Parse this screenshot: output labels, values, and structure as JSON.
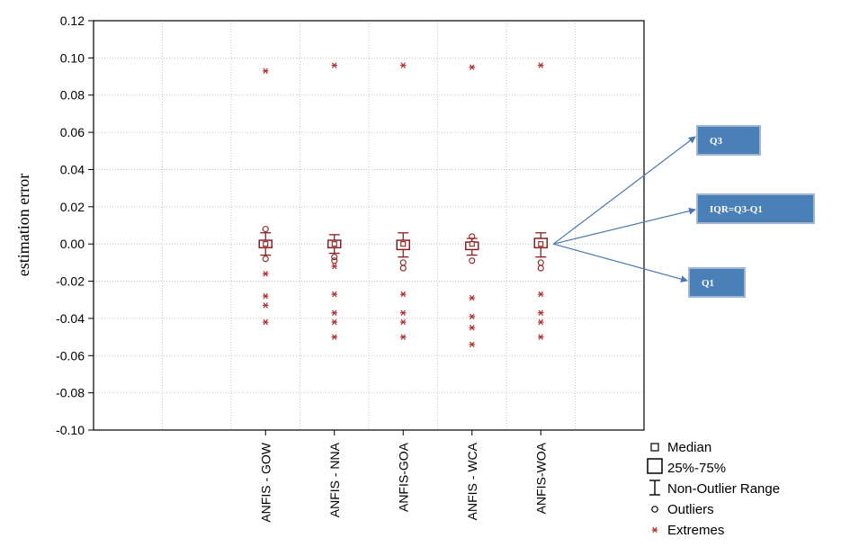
{
  "chart_data": {
    "type": "box",
    "ylabel": "estimation error",
    "ylim": [
      -0.1,
      0.12
    ],
    "yticks": [
      0.12,
      0.1,
      0.08,
      0.06,
      0.04,
      0.02,
      0.0,
      -0.02,
      -0.04,
      -0.06,
      -0.08,
      -0.1
    ],
    "ytick_labels": [
      "0.12",
      "0.10",
      "0.08",
      "0.06",
      "0.04",
      "0.02",
      "0.00",
      "-0.02",
      "-0.04",
      "-0.06",
      "-0.08",
      "-0.10"
    ],
    "grid": true,
    "categories": [
      "ANFIS - GOW",
      "ANFIS - NNA",
      "ANFIS-GOA",
      "ANFIS - WCA",
      "ANFIS-WOA"
    ],
    "boxes": [
      {
        "median": 0.0,
        "q1": -0.002,
        "q3": 0.002,
        "whisker_low": -0.006,
        "whisker_high": 0.006,
        "outliers": [
          0.008,
          -0.008
        ],
        "extremes": [
          0.093,
          -0.016,
          -0.028,
          -0.033,
          -0.042
        ]
      },
      {
        "median": 0.0,
        "q1": -0.002,
        "q3": 0.002,
        "whisker_low": -0.005,
        "whisker_high": 0.005,
        "outliers": [
          -0.007,
          -0.009
        ],
        "extremes": [
          0.096,
          -0.012,
          -0.027,
          -0.037,
          -0.042,
          -0.05
        ]
      },
      {
        "median": 0.0,
        "q1": -0.003,
        "q3": 0.002,
        "whisker_low": -0.007,
        "whisker_high": 0.006,
        "outliers": [
          -0.01,
          -0.013
        ],
        "extremes": [
          0.096,
          -0.027,
          -0.037,
          -0.042,
          -0.05
        ]
      },
      {
        "median": 0.0,
        "q1": -0.003,
        "q3": 0.001,
        "whisker_low": -0.006,
        "whisker_high": 0.003,
        "outliers": [
          0.004,
          -0.009
        ],
        "extremes": [
          0.095,
          -0.029,
          -0.039,
          -0.045,
          -0.054
        ]
      },
      {
        "median": 0.0,
        "q1": -0.002,
        "q3": 0.003,
        "whisker_low": -0.007,
        "whisker_high": 0.006,
        "outliers": [
          -0.01,
          -0.013
        ],
        "extremes": [
          0.096,
          -0.027,
          -0.037,
          -0.042,
          -0.05
        ]
      }
    ],
    "legend": {
      "placement": "bottom-right",
      "entries": [
        {
          "symbol": "median",
          "label": "Median"
        },
        {
          "symbol": "box",
          "label": "25%-75%"
        },
        {
          "symbol": "whisker",
          "label": "Non-Outlier Range"
        },
        {
          "symbol": "outlier",
          "label": "Outliers"
        },
        {
          "symbol": "extreme",
          "label": "Extremes"
        }
      ]
    },
    "callouts": [
      {
        "label": "Q3"
      },
      {
        "label": "IQR=Q3-Q1"
      },
      {
        "label": "Q1"
      }
    ]
  },
  "colors": {
    "box": "#8b2020",
    "extreme": "#b03030",
    "axis": "#000000",
    "grid": "#b8b8b8",
    "callout_fill": "#4a7fb8",
    "callout_border": "#9fb7d3",
    "arrow": "#4a78b0"
  }
}
